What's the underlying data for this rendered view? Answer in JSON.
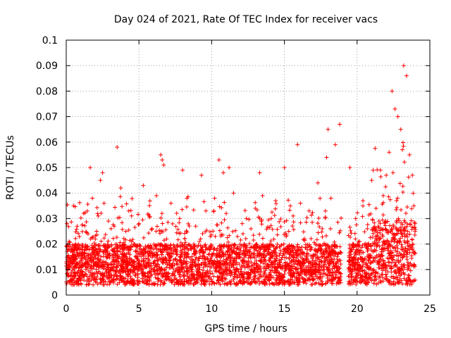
{
  "chart_data": {
    "type": "scatter",
    "title": "Day 024 of 2021, Rate Of TEC Index for receiver vacs",
    "xlabel": "GPS time / hours",
    "ylabel": "ROTI / TECUs",
    "xlim": [
      0,
      25
    ],
    "ylim": [
      0,
      0.1
    ],
    "xticks": [
      "0",
      "5",
      "10",
      "15",
      "20",
      "25"
    ],
    "yticks": [
      "0",
      "0.01",
      "0.02",
      "0.03",
      "0.04",
      "0.05",
      "0.06",
      "0.07",
      "0.08",
      "0.09",
      "0.1"
    ],
    "grid": true,
    "marker": "+",
    "color": "#ff0000",
    "data_gap_hours": [
      18.9,
      19.4
    ],
    "series": [
      {
        "name": "ROTI",
        "x": [
          0.05,
          0.1,
          0.2,
          0.35,
          0.5,
          0.6,
          0.75,
          0.9,
          1.0,
          1.2,
          1.35,
          1.5,
          1.65,
          1.8,
          1.85,
          2.0,
          2.2,
          2.35,
          2.5,
          2.6,
          2.7,
          2.9,
          3.1,
          3.3,
          3.5,
          3.75,
          3.9,
          4.1,
          4.3,
          4.5,
          4.7,
          5.0,
          5.3,
          5.6,
          5.9,
          6.2,
          6.5,
          6.6,
          6.7,
          6.9,
          7.2,
          7.5,
          7.8,
          8.0,
          8.3,
          8.6,
          8.9,
          9.1,
          9.3,
          9.6,
          9.9,
          10.2,
          10.5,
          10.8,
          11.0,
          11.2,
          11.5,
          11.8,
          12.1,
          12.4,
          12.7,
          13.0,
          13.3,
          13.5,
          13.8,
          14.1,
          14.4,
          14.7,
          15.0,
          15.3,
          15.6,
          15.9,
          16.1,
          16.4,
          16.7,
          17.0,
          17.3,
          17.6,
          17.9,
          18.0,
          18.2,
          18.5,
          18.8,
          19.5,
          19.7,
          19.9,
          20.1,
          20.4,
          20.7,
          21.0,
          21.3,
          21.6,
          21.8,
          22.0,
          22.2,
          22.4,
          22.6,
          22.8,
          23.0,
          23.2,
          23.4,
          23.6,
          23.8,
          23.9
        ],
        "y": [
          0.028,
          0.012,
          0.021,
          0.009,
          0.035,
          0.015,
          0.027,
          0.011,
          0.018,
          0.032,
          0.01,
          0.024,
          0.05,
          0.038,
          0.014,
          0.022,
          0.031,
          0.045,
          0.048,
          0.036,
          0.019,
          0.029,
          0.012,
          0.027,
          0.058,
          0.042,
          0.016,
          0.025,
          0.033,
          0.021,
          0.013,
          0.028,
          0.043,
          0.017,
          0.026,
          0.039,
          0.055,
          0.053,
          0.051,
          0.022,
          0.036,
          0.014,
          0.03,
          0.049,
          0.038,
          0.018,
          0.027,
          0.012,
          0.047,
          0.033,
          0.023,
          0.038,
          0.053,
          0.048,
          0.032,
          0.05,
          0.04,
          0.019,
          0.028,
          0.013,
          0.026,
          0.034,
          0.048,
          0.039,
          0.018,
          0.03,
          0.037,
          0.013,
          0.05,
          0.025,
          0.031,
          0.059,
          0.036,
          0.022,
          0.033,
          0.015,
          0.044,
          0.026,
          0.054,
          0.065,
          0.038,
          0.059,
          0.067,
          0.05,
          0.02,
          0.03,
          0.011,
          0.037,
          0.026,
          0.045,
          0.034,
          0.049,
          0.039,
          0.047,
          0.056,
          0.08,
          0.073,
          0.07,
          0.065,
          0.09,
          0.086,
          0.055,
          0.047,
          0.035
        ]
      }
    ]
  }
}
